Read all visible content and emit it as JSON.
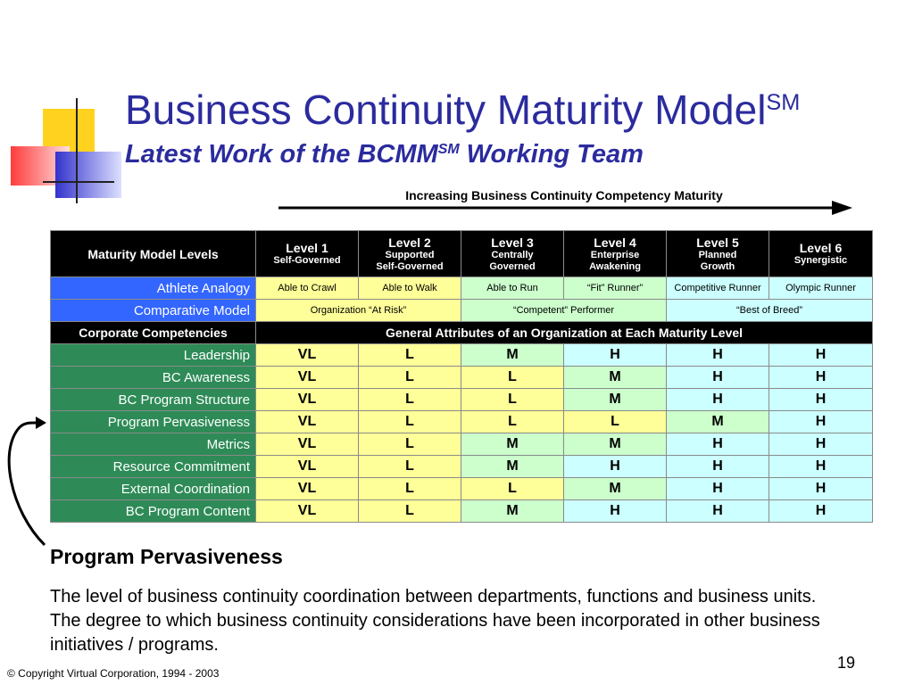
{
  "header": {
    "title": "Business Continuity Maturity Model",
    "title_superscript": "SM",
    "subtitle_prefix": "Latest Work of the BCMM",
    "subtitle_superscript": "SM",
    "subtitle_suffix": " Working Team"
  },
  "arrow": {
    "label": "Increasing Business Continuity Competency Maturity"
  },
  "table": {
    "header_label": "Maturity Model Levels",
    "levels": [
      {
        "title": "Level 1",
        "subtitle": "Self-Governed"
      },
      {
        "title": "Level 2",
        "subtitle": "Supported\nSelf-Governed"
      },
      {
        "title": "Level 3",
        "subtitle": "Centrally\nGoverned"
      },
      {
        "title": "Level 4",
        "subtitle": "Enterprise\nAwakening"
      },
      {
        "title": "Level 5",
        "subtitle": "Planned\nGrowth"
      },
      {
        "title": "Level 6",
        "subtitle": "Synergistic"
      }
    ],
    "athlete_row": {
      "label": "Athlete Analogy",
      "cells": [
        "Able to Crawl",
        "Able to Walk",
        "Able to Run",
        "“Fit” Runner”",
        "Competitive Runner",
        "Olympic Runner"
      ]
    },
    "comparative_row": {
      "label": "Comparative Model",
      "cells": [
        "Organization “At Risk”",
        "“Competent” Performer",
        "“Best of Breed”"
      ]
    },
    "corporate_row": {
      "label": "Corporate Competencies",
      "attributes": "General Attributes of an Organization at Each Maturity Level"
    },
    "competencies": [
      {
        "label": "Leadership",
        "values": [
          "VL",
          "L",
          "M",
          "H",
          "H",
          "H"
        ]
      },
      {
        "label": "BC Awareness",
        "values": [
          "VL",
          "L",
          "L",
          "M",
          "H",
          "H"
        ]
      },
      {
        "label": "BC Program Structure",
        "values": [
          "VL",
          "L",
          "L",
          "M",
          "H",
          "H"
        ]
      },
      {
        "label": "Program Pervasiveness",
        "values": [
          "VL",
          "L",
          "L",
          "L",
          "M",
          "H"
        ]
      },
      {
        "label": "Metrics",
        "values": [
          "VL",
          "L",
          "M",
          "M",
          "H",
          "H"
        ]
      },
      {
        "label": "Resource Commitment",
        "values": [
          "VL",
          "L",
          "M",
          "H",
          "H",
          "H"
        ]
      },
      {
        "label": "External Coordination",
        "values": [
          "VL",
          "L",
          "L",
          "M",
          "H",
          "H"
        ]
      },
      {
        "label": "BC Program Content",
        "values": [
          "VL",
          "L",
          "M",
          "H",
          "H",
          "H"
        ]
      }
    ]
  },
  "colors": {
    "title_blue": "#2b2b9e",
    "row_label_blue": "#3366ff",
    "row_label_green": "#2e8b57",
    "VL": "#ffff99",
    "L": "#ffff99",
    "M": "#ccffcc",
    "H": "#ccffff"
  },
  "description": {
    "title": "Program Pervasiveness",
    "text": "The level of business continuity coordination between departments, functions and business units.  The degree to which business continuity considerations have been incorporated in other business initiatives / programs."
  },
  "footer": {
    "slide_number": "19",
    "copyright": "© Copyright Virtual Corporation, 1994 - 2003"
  }
}
